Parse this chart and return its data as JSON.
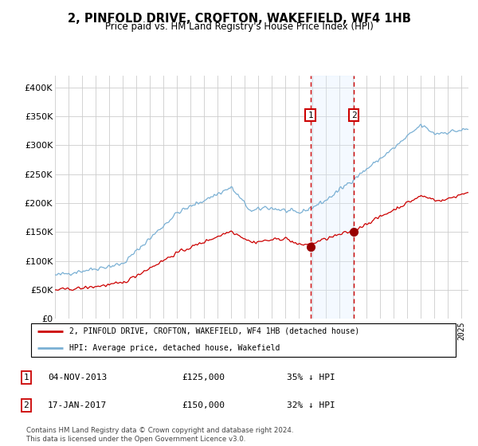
{
  "title": "2, PINFOLD DRIVE, CROFTON, WAKEFIELD, WF4 1HB",
  "subtitle": "Price paid vs. HM Land Registry's House Price Index (HPI)",
  "event1_date": 2013.84,
  "event2_date": 2017.04,
  "event1_value": 125000,
  "event2_value": 150000,
  "house_sale_labels": [
    "1",
    "2"
  ],
  "ylim": [
    0,
    420000
  ],
  "yticks": [
    0,
    50000,
    100000,
    150000,
    200000,
    250000,
    300000,
    350000,
    400000
  ],
  "legend_label_red": "2, PINFOLD DRIVE, CROFTON, WAKEFIELD, WF4 1HB (detached house)",
  "legend_label_blue": "HPI: Average price, detached house, Wakefield",
  "table_rows": [
    [
      "1",
      "04-NOV-2013",
      "£125,000",
      "35% ↓ HPI"
    ],
    [
      "2",
      "17-JAN-2017",
      "£150,000",
      "32% ↓ HPI"
    ]
  ],
  "footer": "Contains HM Land Registry data © Crown copyright and database right 2024.\nThis data is licensed under the Open Government Licence v3.0.",
  "red_color": "#cc0000",
  "blue_color": "#7ab0d4",
  "shade_color": "#ddeeff",
  "grid_color": "#cccccc",
  "background_color": "#ffffff",
  "xmin": 1995.0,
  "xmax": 2025.5
}
